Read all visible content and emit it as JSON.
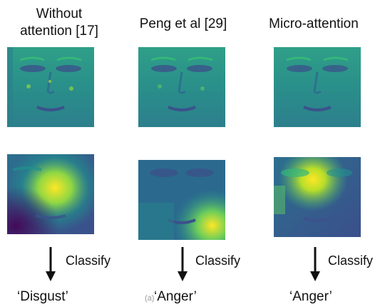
{
  "columns": [
    {
      "title_line1": "Without",
      "title_line2": "attention [17]",
      "classify": "Classify",
      "label": "‘Disgust’"
    },
    {
      "title_line1": "Peng et al [29]",
      "title_line2": "",
      "classify": "Classify",
      "label": "‘Anger’"
    },
    {
      "title_line1": "Micro-attention",
      "title_line2": "",
      "classify": "Classify",
      "label": "‘Anger’"
    }
  ],
  "figure_marker": "(a)",
  "colormap": [
    "#440154",
    "#3b528b",
    "#21908d",
    "#5dc962",
    "#fde725"
  ]
}
